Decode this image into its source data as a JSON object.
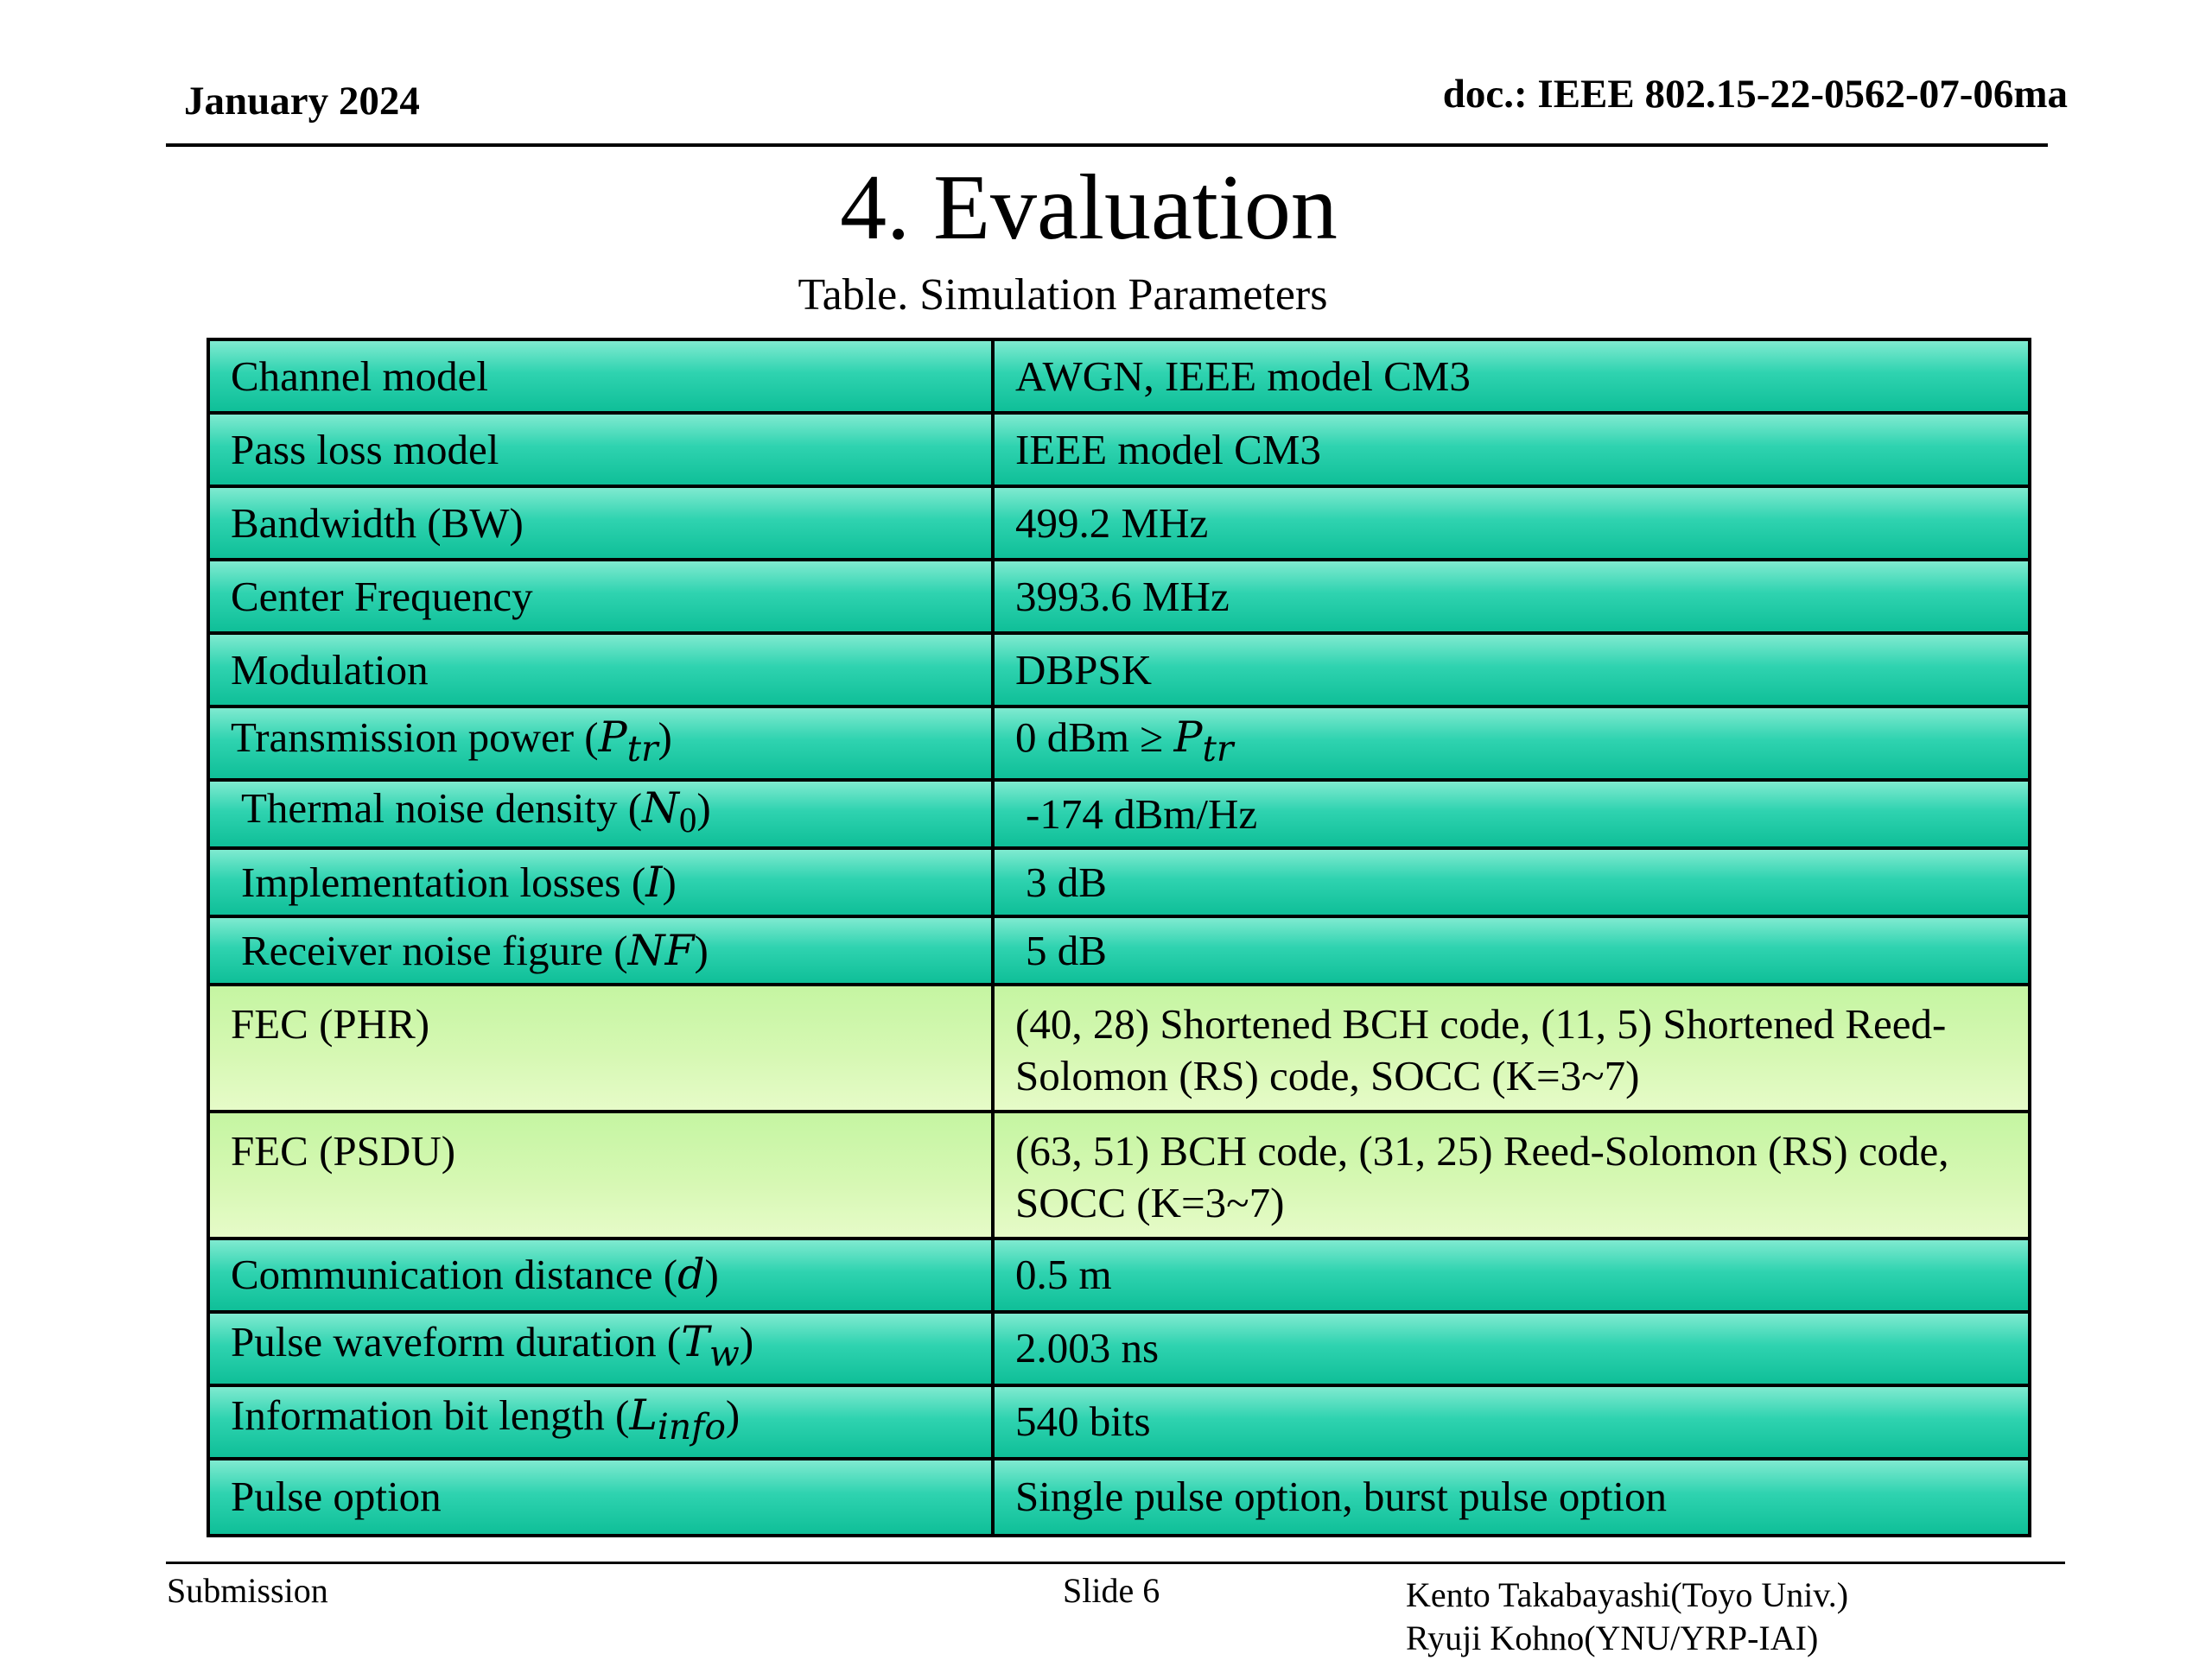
{
  "header": {
    "date": "January 2024",
    "doc_id": "doc.: IEEE 802.15-22-0562-07-06ma"
  },
  "title": "4. Evaluation",
  "table_caption": "Table. Simulation Parameters",
  "table": {
    "rows": [
      {
        "param": "Channel model",
        "value": "AWGN, IEEE model CM3",
        "style": "teal"
      },
      {
        "param": "Pass loss model",
        "value": "IEEE model CM3",
        "style": "teal"
      },
      {
        "param": "Bandwidth (BW)",
        "value": "499.2 MHz",
        "style": "teal"
      },
      {
        "param": "Center Frequency",
        "value": "3993.6 MHz",
        "style": "teal"
      },
      {
        "param": "Modulation",
        "value": "DBPSK",
        "style": "teal"
      },
      {
        "param": "Transmission power (",
        "param_math": "P",
        "param_sub": "tr",
        "param_tail": ")",
        "value": "0 dBm ≥ ",
        "value_math": "P",
        "value_sub": "tr",
        "style": "teal"
      },
      {
        "param": "Thermal noise density (",
        "param_math": "N",
        "param_sub": "0",
        "param_tail": ")",
        "value": "-174 dBm/Hz",
        "style": "teal"
      },
      {
        "param": "Implementation losses (",
        "param_math": "I",
        "param_tail": ")",
        "value": "3 dB",
        "style": "teal"
      },
      {
        "param": "Receiver noise figure (",
        "param_math": "NF",
        "param_tail": ")",
        "value": "5 dB",
        "style": "teal"
      },
      {
        "param": "FEC (PHR)",
        "value_line1": "(40, 28) Shortened BCH code, (11, 5) Shortened Reed-",
        "value_line2": "Solomon (RS) code, SOCC (K=3~7)",
        "style": "lime"
      },
      {
        "param": "FEC (PSDU)",
        "value_line1": "(63, 51) BCH code, (31, 25) Reed-Solomon (RS) code,",
        "value_line2": "SOCC (K=3~7)",
        "style": "lime"
      },
      {
        "param": "Communication distance (",
        "param_math": "d",
        "param_tail": ")",
        "value": "0.5 m",
        "style": "teal"
      },
      {
        "param": "Pulse waveform duration (",
        "param_math": "T",
        "param_sub": "w",
        "param_tail": ")",
        "value": "2.003 ns",
        "style": "teal"
      },
      {
        "param": "Information bit length (",
        "param_math": "L",
        "param_sub": "info",
        "param_tail": ")",
        "value": "540 bits",
        "style": "teal"
      },
      {
        "param": "Pulse option",
        "value": "Single pulse option, burst pulse option",
        "style": "teal"
      }
    ]
  },
  "footer": {
    "submission": "Submission",
    "slide": "Slide 6",
    "author1": "Kento Takabayashi(Toyo Univ.)",
    "author2": "Ryuji Kohno(YNU/YRP-IAI)"
  },
  "colors": {
    "teal_top": "#7fead0",
    "teal_mid": "#2fd3b0",
    "teal_bottom": "#0fbf98",
    "lime_top": "#c5f5a2",
    "lime_bottom": "#e6fbc8"
  }
}
